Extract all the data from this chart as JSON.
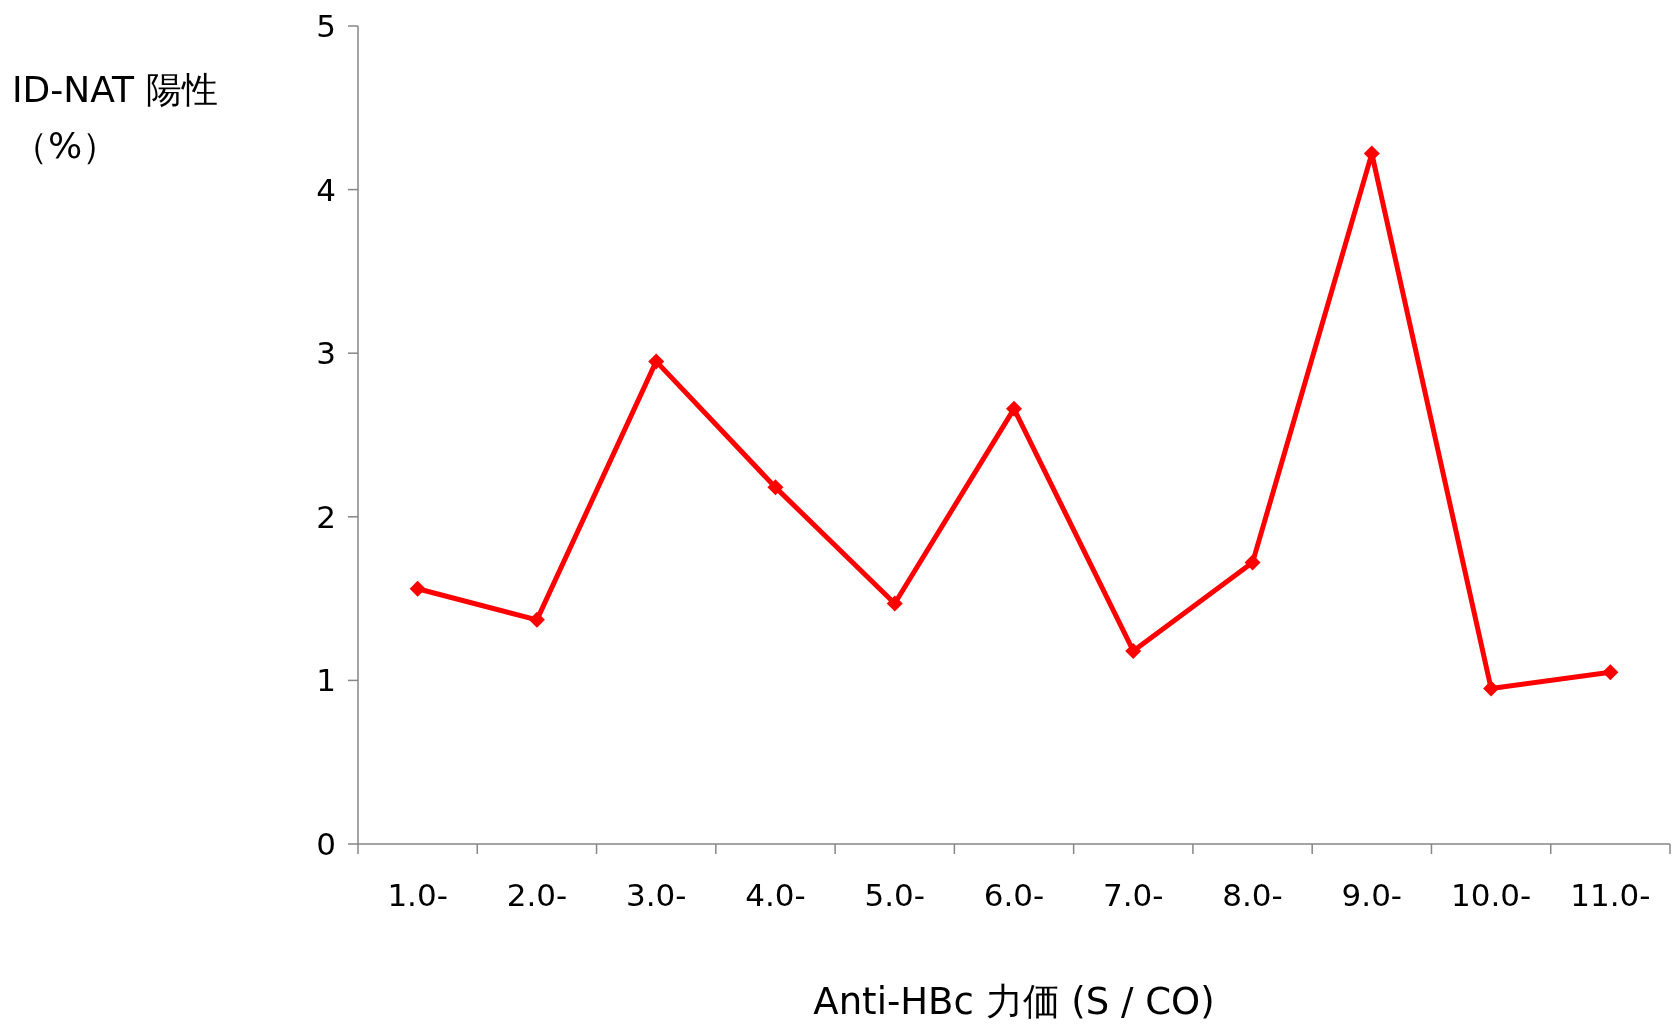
{
  "chart_data": {
    "type": "line",
    "xlabel": "Anti-HBc 力価 (S / CO)",
    "ylabel": "ID-NAT 陽性（%）",
    "categories": [
      "1.0-",
      "2.0-",
      "3.0-",
      "4.0-",
      "5.0-",
      "6.0-",
      "7.0-",
      "8.0-",
      "9.0-",
      "10.0-",
      "11.0-"
    ],
    "series": [
      {
        "color": "#ff0000",
        "values": [
          1.56,
          1.37,
          2.95,
          2.18,
          1.47,
          2.66,
          1.18,
          1.72,
          4.22,
          0.95,
          1.05
        ]
      }
    ],
    "ylim": [
      0,
      5
    ],
    "yticks": [
      0,
      1,
      2,
      3,
      4,
      5
    ],
    "marker": "diamond",
    "line_style": "solid",
    "grid": false
  }
}
